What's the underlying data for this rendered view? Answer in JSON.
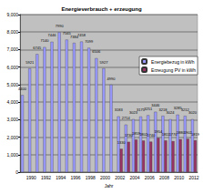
{
  "chart_data": {
    "type": "bar",
    "title": "Energieverbrauch + erzeugung",
    "x_label": "Jahr",
    "categories": [
      null,
      "1990",
      null,
      "1992",
      null,
      "1994",
      null,
      "1996",
      null,
      "1998",
      null,
      "2000",
      null,
      "2002",
      null,
      "2004",
      null,
      "2006",
      null,
      "2008",
      null,
      "2010",
      null,
      "2012"
    ],
    "series": [
      {
        "name": "Energiebezug in kWh",
        "color": "#9999ff",
        "values": [
          4400,
          5921,
          6745,
          7140,
          7446,
          7990,
          7565,
          7384,
          7458,
          7099,
          6506,
          5927,
          4990,
          3183,
          2714,
          3023,
          3175,
          3251,
          3446,
          3218,
          3024,
          3285,
          3212,
          3020
        ]
      },
      {
        "name": "Erzeugung PV in kWh",
        "color": "#993366",
        "values": [
          null,
          null,
          null,
          null,
          null,
          null,
          null,
          null,
          null,
          null,
          null,
          null,
          null,
          1330,
          1730,
          1859,
          1802,
          1740,
          1954,
          1811,
          1770,
          1880,
          1902,
          1819
        ]
      }
    ],
    "ylim": [
      0,
      9000
    ],
    "yticks": [
      0,
      1000,
      2000,
      3000,
      4000,
      5000,
      6000,
      7000,
      8000,
      9000
    ],
    "grid": true,
    "legend": "right",
    "data_labels": true
  }
}
